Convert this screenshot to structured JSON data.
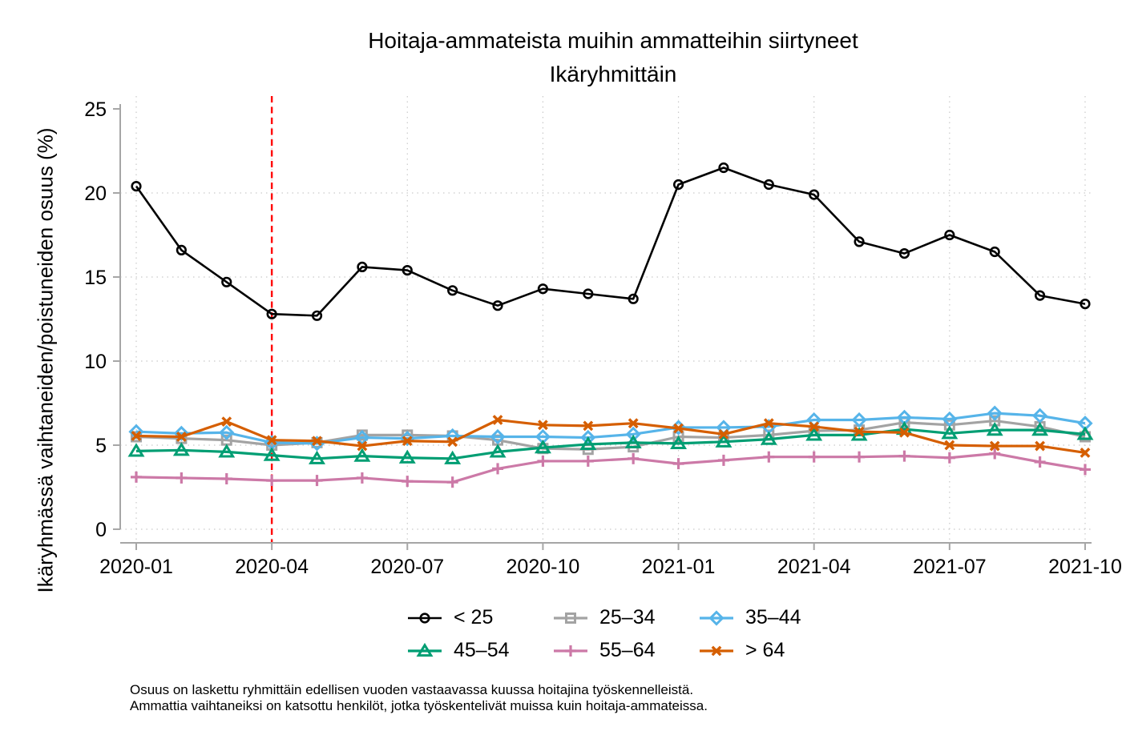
{
  "title": {
    "line1": "Hoitaja-ammateista muihin ammatteihin siirtyneet",
    "line2": "Ikäryhmittäin"
  },
  "axes": {
    "y_label": "Ikäryhmässä vaihtaneiden/poistuneiden osuus (%)",
    "y_ticks": [
      0,
      5,
      10,
      15,
      20,
      25
    ],
    "x_tick_labels": [
      "2020-01",
      "2020-04",
      "2020-07",
      "2020-10",
      "2021-01",
      "2021-04",
      "2021-07",
      "2021-10"
    ]
  },
  "footnotes": [
    "Osuus on laskettu ryhmittäin edellisen vuoden vastaavassa kuussa hoitajina työskennelleistä.",
    "Ammattia vaihtaneiksi on katsottu henkilöt, jotka työskentelivät muissa kuin hoitaja-ammateissa."
  ],
  "colors": {
    "axis": "#A6A6A6",
    "grid": "#C9C9C9",
    "reference_line": "#FF0000",
    "background": "#FFFFFF"
  },
  "chart_data": {
    "type": "line",
    "title": "Hoitaja-ammateista muihin ammatteihin siirtyneet",
    "subtitle": "Ikäryhmittäin",
    "xlabel": "",
    "ylabel": "Ikäryhmässä vaihtaneiden/poistuneiden osuus (%)",
    "ylim": [
      0,
      25
    ],
    "grid": "dotted",
    "legend_position": "bottom",
    "categories": [
      "2020-01",
      "2020-02",
      "2020-03",
      "2020-04",
      "2020-05",
      "2020-06",
      "2020-07",
      "2020-08",
      "2020-09",
      "2020-10",
      "2020-11",
      "2020-12",
      "2021-01",
      "2021-02",
      "2021-03",
      "2021-04",
      "2021-05",
      "2021-06",
      "2021-07",
      "2021-08",
      "2021-09",
      "2021-10"
    ],
    "series": [
      {
        "name": "< 25",
        "color": "#000000",
        "marker": "circle",
        "values": [
          20.4,
          16.6,
          14.7,
          12.8,
          12.7,
          15.6,
          15.4,
          14.2,
          13.3,
          14.3,
          14.0,
          13.7,
          20.5,
          21.5,
          20.5,
          19.9,
          17.1,
          16.4,
          17.5,
          16.5,
          13.9,
          13.4
        ]
      },
      {
        "name": "25–34",
        "color": "#A3A3A3",
        "marker": "square",
        "values": [
          5.5,
          5.4,
          5.3,
          5.0,
          5.15,
          5.6,
          5.6,
          5.55,
          5.3,
          4.8,
          4.75,
          4.9,
          5.5,
          5.45,
          5.6,
          5.85,
          5.9,
          6.35,
          6.2,
          6.45,
          6.1,
          5.5
        ]
      },
      {
        "name": "35–44",
        "color": "#56B4E9",
        "marker": "diamond",
        "values": [
          5.8,
          5.7,
          5.75,
          5.15,
          5.1,
          5.45,
          5.4,
          5.55,
          5.5,
          5.5,
          5.45,
          5.65,
          6.05,
          6.05,
          6.1,
          6.5,
          6.5,
          6.65,
          6.55,
          6.9,
          6.75,
          6.3
        ]
      },
      {
        "name": "45–54",
        "color": "#009E73",
        "marker": "triangle",
        "values": [
          4.65,
          4.7,
          4.6,
          4.4,
          4.2,
          4.35,
          4.25,
          4.2,
          4.6,
          4.85,
          5.05,
          5.15,
          5.1,
          5.2,
          5.35,
          5.6,
          5.6,
          5.95,
          5.7,
          5.9,
          5.9,
          5.65
        ]
      },
      {
        "name": "55–64",
        "color": "#CC79A7",
        "marker": "plus",
        "values": [
          3.1,
          3.05,
          3.0,
          2.9,
          2.9,
          3.05,
          2.85,
          2.8,
          3.6,
          4.05,
          4.05,
          4.2,
          3.9,
          4.1,
          4.3,
          4.3,
          4.3,
          4.35,
          4.25,
          4.5,
          4.0,
          3.55
        ]
      },
      {
        "name": "> 64",
        "color": "#D55E00",
        "marker": "x",
        "values": [
          5.55,
          5.5,
          6.4,
          5.3,
          5.25,
          4.95,
          5.25,
          5.2,
          6.5,
          6.2,
          6.15,
          6.3,
          6.0,
          5.65,
          6.3,
          6.1,
          5.8,
          5.75,
          5.0,
          4.95,
          4.95,
          4.55
        ]
      }
    ],
    "vline": {
      "category": "2020-04",
      "color": "#FF0000",
      "style": "dashed"
    }
  }
}
